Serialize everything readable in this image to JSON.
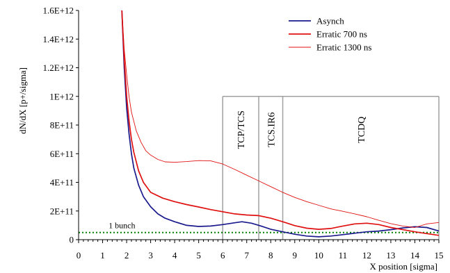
{
  "chart_data": {
    "type": "line",
    "title": "",
    "xlabel": "X position [sigma]",
    "ylabel": "dN/dX  [p+/sigma]",
    "xlim": [
      0,
      15
    ],
    "ylim": [
      0,
      1600000000000
    ],
    "x_ticks": [
      0,
      1,
      2,
      3,
      4,
      5,
      6,
      7,
      8,
      9,
      10,
      11,
      12,
      13,
      14,
      15
    ],
    "x_tick_labels": [
      "0",
      "1",
      "2",
      "3",
      "4",
      "5",
      "6",
      "7",
      "8",
      "9",
      "10",
      "11",
      "12",
      "13",
      "14",
      "15"
    ],
    "y_ticks": [
      0,
      200000000000,
      400000000000,
      600000000000,
      800000000000,
      1000000000000,
      1200000000000,
      1400000000000,
      1600000000000
    ],
    "y_tick_labels": [
      "0",
      "2E+11",
      "4E+11",
      "6E+11",
      "8E+11",
      "1E+12",
      "1.2E+12",
      "1.4E+12",
      "1.6E+12"
    ],
    "grid": false,
    "legend_position": "top-right",
    "series": [
      {
        "name": "Asynch",
        "color": "#1a1a8c",
        "stroke_weight": "medium",
        "x": [
          1.8,
          1.9,
          2.0,
          2.1,
          2.2,
          2.3,
          2.5,
          2.7,
          3.0,
          3.3,
          3.6,
          4.0,
          4.5,
          5.0,
          5.5,
          6.0,
          6.5,
          6.8,
          7.2,
          7.6,
          8.0,
          8.5,
          9.0,
          9.5,
          10.0,
          10.5,
          11.0,
          11.5,
          12.0,
          12.5,
          13.0,
          13.5,
          14.0,
          14.5,
          15.0
        ],
        "y": [
          1600000000000,
          1200000000000,
          920000000000,
          740000000000,
          600000000000,
          500000000000,
          380000000000,
          300000000000,
          230000000000,
          180000000000,
          150000000000,
          125000000000,
          100000000000,
          92000000000,
          95000000000,
          105000000000,
          118000000000,
          125000000000,
          115000000000,
          95000000000,
          72000000000,
          55000000000,
          38000000000,
          25000000000,
          20000000000,
          25000000000,
          35000000000,
          45000000000,
          55000000000,
          60000000000,
          70000000000,
          82000000000,
          90000000000,
          85000000000,
          60000000000
        ]
      },
      {
        "name": "Erratic 700 ns",
        "color": "#e01010",
        "stroke_weight": "medium",
        "x": [
          1.8,
          1.9,
          2.0,
          2.1,
          2.2,
          2.3,
          2.5,
          2.7,
          3.0,
          3.5,
          4.0,
          4.5,
          5.0,
          5.5,
          6.0,
          6.5,
          7.0,
          7.5,
          8.0,
          8.5,
          9.0,
          9.5,
          10.0,
          10.5,
          11.0,
          11.5,
          12.0,
          12.5,
          13.0,
          13.5,
          14.0,
          14.5,
          15.0
        ],
        "y": [
          1600000000000,
          1260000000000,
          1000000000000,
          830000000000,
          700000000000,
          610000000000,
          480000000000,
          400000000000,
          330000000000,
          290000000000,
          265000000000,
          245000000000,
          228000000000,
          210000000000,
          195000000000,
          180000000000,
          172000000000,
          168000000000,
          150000000000,
          125000000000,
          98000000000,
          80000000000,
          72000000000,
          78000000000,
          95000000000,
          110000000000,
          115000000000,
          105000000000,
          85000000000,
          70000000000,
          55000000000,
          42000000000,
          30000000000
        ]
      },
      {
        "name": "Erratic 1300 ns",
        "color": "#e01010",
        "stroke_weight": "thin",
        "x": [
          1.8,
          1.9,
          2.0,
          2.1,
          2.2,
          2.4,
          2.6,
          2.8,
          3.0,
          3.3,
          3.6,
          4.0,
          4.5,
          5.0,
          5.5,
          6.0,
          6.5,
          7.0,
          7.5,
          8.0,
          8.5,
          9.0,
          9.5,
          10.0,
          10.5,
          11.0,
          11.5,
          12.0,
          12.5,
          13.0,
          13.5,
          14.0,
          14.5,
          15.0
        ],
        "y": [
          1600000000000,
          1330000000000,
          1150000000000,
          1000000000000,
          890000000000,
          760000000000,
          680000000000,
          620000000000,
          590000000000,
          560000000000,
          543000000000,
          540000000000,
          545000000000,
          552000000000,
          550000000000,
          528000000000,
          490000000000,
          450000000000,
          410000000000,
          370000000000,
          330000000000,
          295000000000,
          265000000000,
          240000000000,
          215000000000,
          198000000000,
          180000000000,
          160000000000,
          135000000000,
          112000000000,
          95000000000,
          85000000000,
          110000000000,
          120000000000
        ]
      }
    ],
    "reference_line": {
      "label": "1 bunch",
      "y": 50000000000,
      "color": "#008000",
      "style": "dotted"
    },
    "collimator_regions": [
      {
        "label": "TCP/TCS",
        "x_from": 6.0,
        "x_to": 7.5,
        "y_top": 1000000000000
      },
      {
        "label": "TCS.IR6",
        "x_from": 7.5,
        "x_to": 8.5,
        "y_top": 1000000000000
      },
      {
        "label": "TCDQ",
        "x_from": 8.5,
        "x_to": 15.0,
        "y_top": 1000000000000
      }
    ],
    "region_border_color": "#a0a0a0"
  }
}
